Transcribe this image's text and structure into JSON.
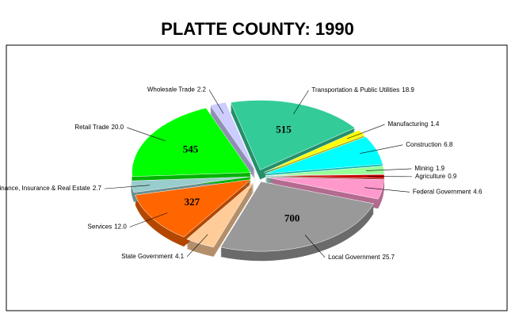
{
  "chart_data": {
    "type": "pie",
    "title": "PLATTE COUNTY:  1990",
    "categories": [
      "Transportation & Public Utilities",
      "Manufacturing",
      "Construction",
      "Mining",
      "Agriculture",
      "Federal Government",
      "Local Government",
      "State Government",
      "Services",
      "Finance, Insurance & Real Estate",
      "Retail Trade",
      "Wholesale Trade"
    ],
    "values": [
      18.9,
      1.4,
      6.8,
      1.9,
      0.9,
      4.6,
      25.7,
      4.1,
      12.0,
      2.7,
      20.0,
      2.2
    ],
    "value_labels": [
      "18.9",
      "1.4",
      "6.8",
      "1.9",
      "0.9",
      "4.6",
      "25.7",
      "4.1",
      "12.0",
      "2.7",
      "20.0",
      "2.2"
    ],
    "counts": [
      515,
      null,
      null,
      null,
      null,
      null,
      700,
      null,
      327,
      null,
      545,
      null
    ],
    "colors": [
      "#33cc99",
      "#ffff00",
      "#00ffff",
      "#99ff99",
      "#cc0000",
      "#ff99cc",
      "#999999",
      "#ffcc99",
      "#ff6600",
      "#99cccc",
      "#00ff00",
      "#ccccff"
    ]
  }
}
